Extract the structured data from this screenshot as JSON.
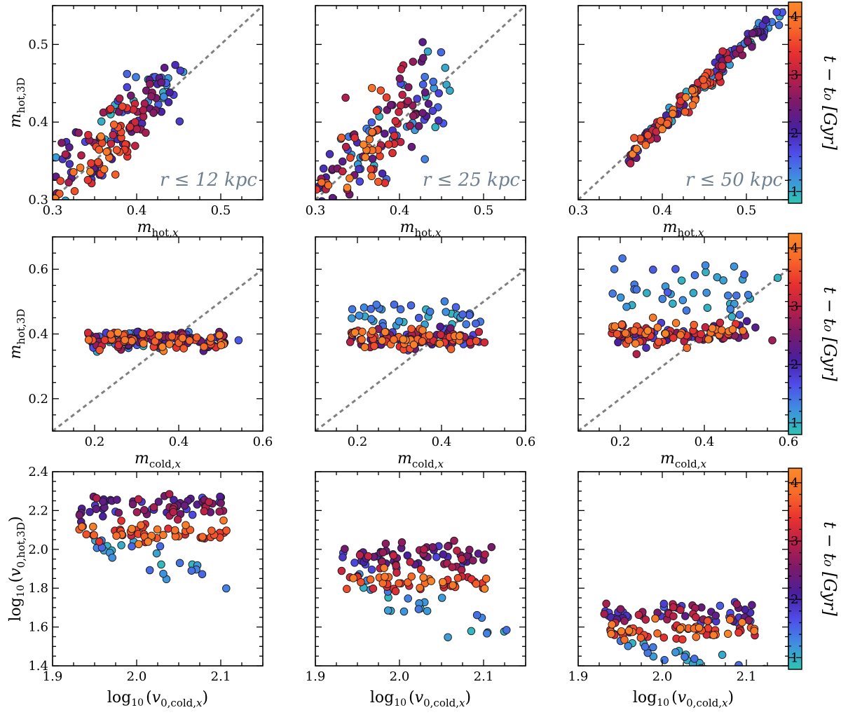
{
  "colormap": {
    "min": 0.8,
    "max": 4.25,
    "stops": [
      "#2fc4b2",
      "#3f90e0",
      "#4f4ce8",
      "#4a1f9e",
      "#7a1a6a",
      "#b81f4a",
      "#e8322f",
      "#f86a28",
      "#fa8a2a"
    ],
    "ticks": [
      "1",
      "2",
      "3",
      "4"
    ],
    "tick_values": [
      1,
      2,
      3,
      4
    ],
    "label": "t − t₀ [Gyr]"
  },
  "chart_data": [
    {
      "id": "r0c0",
      "type": "scatter",
      "xlabel": "m_{hot,x}",
      "ylabel": "m_{hot,3D}",
      "xlim": [
        0.3,
        0.55
      ],
      "ylim": [
        0.3,
        0.55
      ],
      "xticks": [
        0.3,
        0.4,
        0.5
      ],
      "xticklabels": [
        "0.3",
        "0.4",
        "0.5"
      ],
      "yticks": [
        0.3,
        0.4,
        0.5
      ],
      "yticklabels": [
        "0.3",
        "0.4",
        "0.5"
      ],
      "diagonal": true,
      "annotation": "r ≤ 12 kpc",
      "spread": 0.05,
      "slope": 0.85,
      "offset": 0.06,
      "seed": 11,
      "n": 150
    },
    {
      "id": "r0c1",
      "type": "scatter",
      "xlabel": "m_{hot,x}",
      "ylabel": "",
      "xlim": [
        0.3,
        0.55
      ],
      "ylim": [
        0.3,
        0.55
      ],
      "xticks": [
        0.3,
        0.4,
        0.5
      ],
      "xticklabels": [
        "0.3",
        "0.4",
        "0.5"
      ],
      "yticks": [
        0.3,
        0.4,
        0.5
      ],
      "yticklabels": [],
      "diagonal": true,
      "annotation": "r ≤ 25 kpc",
      "spread": 0.03,
      "slope": 0.95,
      "offset": 0.02,
      "seed": 23,
      "n": 150
    },
    {
      "id": "r0c2",
      "type": "scatter",
      "xlabel": "m_{hot,x}",
      "ylabel": "",
      "xlim": [
        0.3,
        0.55
      ],
      "ylim": [
        0.3,
        0.55
      ],
      "xticks": [
        0.3,
        0.4,
        0.5
      ],
      "xticklabels": [
        "0.3",
        "0.4",
        "0.5"
      ],
      "yticks": [
        0.3,
        0.4,
        0.5
      ],
      "yticklabels": [],
      "diagonal": true,
      "annotation": "r ≤ 50 kpc",
      "spread": 0.008,
      "slope": 1.0,
      "offset": 0.0,
      "seed": 37,
      "n": 150
    },
    {
      "id": "r1c0",
      "type": "scatter",
      "xlabel": "m_{cold,x}",
      "ylabel": "m_{hot,3D}",
      "xlim": [
        0.1,
        0.6
      ],
      "ylim": [
        0.1,
        0.7
      ],
      "xticks": [
        0.2,
        0.4,
        0.6
      ],
      "xticklabels": [
        "0.2",
        "0.4",
        "0.6"
      ],
      "yticks": [
        0.2,
        0.4,
        0.6
      ],
      "yticklabels": [
        "0.2",
        "0.4",
        "0.6"
      ],
      "diagonal": true,
      "annotation": "",
      "flat_y": 0.38,
      "spread": 0.025,
      "seed": 41,
      "n": 160
    },
    {
      "id": "r1c1",
      "type": "scatter",
      "xlabel": "m_{cold,x}",
      "ylabel": "",
      "xlim": [
        0.1,
        0.6
      ],
      "ylim": [
        0.1,
        0.7
      ],
      "xticks": [
        0.2,
        0.4,
        0.6
      ],
      "xticklabels": [
        "0.2",
        "0.4",
        "0.6"
      ],
      "yticks": [
        0.2,
        0.4,
        0.6
      ],
      "yticklabels": [],
      "diagonal": true,
      "annotation": "",
      "flat_y": 0.385,
      "spread": 0.025,
      "seed": 53,
      "n": 160
    },
    {
      "id": "r1c2",
      "type": "scatter",
      "xlabel": "m_{cold,x}",
      "ylabel": "",
      "xlim": [
        0.1,
        0.6
      ],
      "ylim": [
        0.1,
        0.7
      ],
      "xticks": [
        0.2,
        0.4,
        0.6
      ],
      "xticklabels": [
        "0.2",
        "0.4",
        "0.6"
      ],
      "yticks": [
        0.2,
        0.4,
        0.6
      ],
      "yticklabels": [],
      "diagonal": true,
      "annotation": "",
      "flat_y": 0.4,
      "spread": 0.03,
      "seed": 67,
      "n": 160
    },
    {
      "id": "r2c0",
      "type": "scatter",
      "xlabel": "log10(v_{0,cold,x})",
      "ylabel": "log10(v_{0,hot,3D})",
      "xlim": [
        1.9,
        2.15
      ],
      "ylim": [
        1.4,
        2.4
      ],
      "xticks": [
        1.9,
        2.0,
        2.1
      ],
      "xticklabels": [
        "1.9",
        "2.0",
        "2.1"
      ],
      "yticks": [
        1.4,
        1.6,
        1.8,
        2.0,
        2.2,
        2.4
      ],
      "yticklabels": [
        "1.4",
        "1.6",
        "1.8",
        "2.0",
        "2.2",
        "2.4"
      ],
      "diagonal": false,
      "annotation": "",
      "band_hi": 2.22,
      "band_lo": 2.08,
      "seed": 71,
      "n": 150
    },
    {
      "id": "r2c1",
      "type": "scatter",
      "xlabel": "log10(v_{0,cold,x})",
      "ylabel": "",
      "xlim": [
        1.9,
        2.15
      ],
      "ylim": [
        1.4,
        2.4
      ],
      "xticks": [
        1.9,
        2.0,
        2.1
      ],
      "xticklabels": [
        "1.9",
        "2.0",
        "2.1"
      ],
      "yticks": [
        1.4,
        1.6,
        1.8,
        2.0,
        2.2,
        2.4
      ],
      "yticklabels": [],
      "diagonal": false,
      "annotation": "",
      "band_hi": 1.96,
      "band_lo": 1.83,
      "seed": 83,
      "n": 150
    },
    {
      "id": "r2c2",
      "type": "scatter",
      "xlabel": "log10(v_{0,cold,x})",
      "ylabel": "",
      "xlim": [
        1.9,
        2.15
      ],
      "ylim": [
        1.4,
        2.4
      ],
      "xticks": [
        1.9,
        2.0,
        2.1
      ],
      "xticklabels": [
        "1.9",
        "2.0",
        "2.1"
      ],
      "yticks": [
        1.4,
        1.6,
        1.8,
        2.0,
        2.2,
        2.4
      ],
      "yticklabels": [],
      "diagonal": false,
      "annotation": "",
      "band_hi": 1.65,
      "band_lo": 1.57,
      "seed": 97,
      "n": 150
    }
  ]
}
